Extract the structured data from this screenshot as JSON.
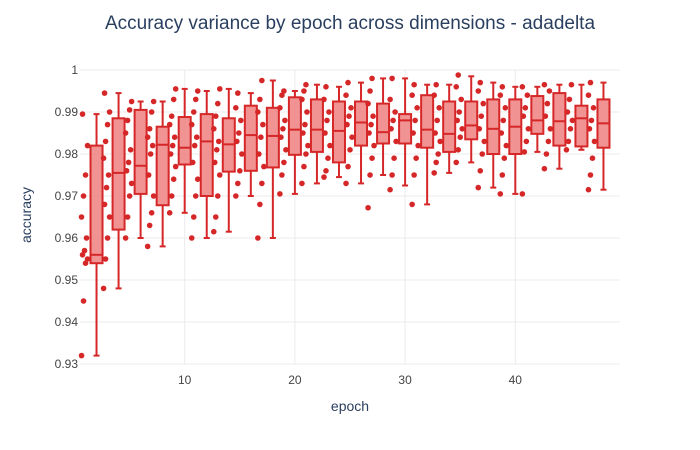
{
  "chart_data": {
    "type": "box",
    "title": "Accuracy variance by epoch across dimensions - adadelta",
    "xlabel": "epoch",
    "ylabel": "accuracy",
    "xlim": [
      0.5,
      49.5
    ],
    "ylim": [
      0.93,
      1.0
    ],
    "x_ticks": [
      10,
      20,
      30,
      40
    ],
    "y_ticks": [
      0.93,
      0.94,
      0.95,
      0.96,
      0.97,
      0.98,
      0.99,
      1
    ],
    "x_tick_labels": [
      "10",
      "20",
      "30",
      "40"
    ],
    "y_tick_labels": [
      "0.93",
      "0.94",
      "0.95",
      "0.96",
      "0.97",
      "0.98",
      "0.99",
      "1"
    ],
    "grid": true,
    "colors": {
      "line": "#d62728",
      "fill": "#f08080",
      "points": "#d62728",
      "grid": "#ebebeb",
      "text": "#2a3f5f"
    },
    "boxes": [
      {
        "epoch": 2,
        "lowerfence": 0.932,
        "q1": 0.954,
        "median": 0.956,
        "q3": 0.982,
        "upperfence": 0.9895,
        "points": [
          0.932,
          0.945,
          0.954,
          0.955,
          0.956,
          0.957,
          0.96,
          0.965,
          0.97,
          0.975,
          0.982,
          0.9895
        ]
      },
      {
        "epoch": 4,
        "lowerfence": 0.948,
        "q1": 0.962,
        "median": 0.9755,
        "q3": 0.9885,
        "upperfence": 0.9945,
        "points": [
          0.948,
          0.955,
          0.96,
          0.965,
          0.968,
          0.972,
          0.975,
          0.979,
          0.983,
          0.987,
          0.99,
          0.9945
        ]
      },
      {
        "epoch": 6,
        "lowerfence": 0.96,
        "q1": 0.9705,
        "median": 0.9772,
        "q3": 0.9905,
        "upperfence": 0.9925,
        "points": [
          0.96,
          0.965,
          0.97,
          0.973,
          0.976,
          0.978,
          0.981,
          0.985,
          0.988,
          0.9905,
          0.9925
        ]
      },
      {
        "epoch": 8,
        "lowerfence": 0.958,
        "q1": 0.9678,
        "median": 0.9822,
        "q3": 0.9865,
        "upperfence": 0.9925,
        "points": [
          0.958,
          0.963,
          0.966,
          0.97,
          0.975,
          0.98,
          0.982,
          0.984,
          0.986,
          0.99,
          0.9925
        ]
      },
      {
        "epoch": 10,
        "lowerfence": 0.966,
        "q1": 0.9775,
        "median": 0.9815,
        "q3": 0.9888,
        "upperfence": 0.9955,
        "points": [
          0.966,
          0.97,
          0.974,
          0.977,
          0.98,
          0.982,
          0.984,
          0.987,
          0.989,
          0.993,
          0.9955
        ]
      },
      {
        "epoch": 12,
        "lowerfence": 0.96,
        "q1": 0.97,
        "median": 0.983,
        "q3": 0.9895,
        "upperfence": 0.995,
        "points": [
          0.96,
          0.965,
          0.97,
          0.974,
          0.978,
          0.982,
          0.984,
          0.987,
          0.99,
          0.993,
          0.995
        ]
      },
      {
        "epoch": 14,
        "lowerfence": 0.9615,
        "q1": 0.9758,
        "median": 0.9823,
        "q3": 0.9885,
        "upperfence": 0.9955,
        "points": [
          0.9615,
          0.965,
          0.97,
          0.975,
          0.978,
          0.981,
          0.983,
          0.986,
          0.989,
          0.992,
          0.9955
        ]
      },
      {
        "epoch": 16,
        "lowerfence": 0.97,
        "q1": 0.976,
        "median": 0.9845,
        "q3": 0.9915,
        "upperfence": 0.9945,
        "points": [
          0.97,
          0.973,
          0.976,
          0.98,
          0.983,
          0.985,
          0.988,
          0.991,
          0.9945
        ]
      },
      {
        "epoch": 18,
        "lowerfence": 0.96,
        "q1": 0.9768,
        "median": 0.9843,
        "q3": 0.991,
        "upperfence": 0.9975,
        "points": [
          0.96,
          0.968,
          0.973,
          0.977,
          0.98,
          0.984,
          0.987,
          0.99,
          0.993,
          0.9975
        ]
      },
      {
        "epoch": 20,
        "lowerfence": 0.9705,
        "q1": 0.9798,
        "median": 0.9858,
        "q3": 0.9935,
        "upperfence": 0.995,
        "points": [
          0.9705,
          0.975,
          0.978,
          0.981,
          0.984,
          0.986,
          0.988,
          0.991,
          0.994,
          0.995
        ]
      },
      {
        "epoch": 22,
        "lowerfence": 0.973,
        "q1": 0.9805,
        "median": 0.9858,
        "q3": 0.993,
        "upperfence": 0.9965,
        "points": [
          0.973,
          0.977,
          0.98,
          0.982,
          0.985,
          0.987,
          0.99,
          0.993,
          0.995,
          0.9965
        ]
      },
      {
        "epoch": 24,
        "lowerfence": 0.9745,
        "q1": 0.978,
        "median": 0.9855,
        "q3": 0.9925,
        "upperfence": 0.996,
        "points": [
          0.9745,
          0.976,
          0.979,
          0.982,
          0.985,
          0.988,
          0.99,
          0.993,
          0.996
        ]
      },
      {
        "epoch": 26,
        "lowerfence": 0.973,
        "q1": 0.982,
        "median": 0.9875,
        "q3": 0.9925,
        "upperfence": 0.997,
        "points": [
          0.973,
          0.977,
          0.981,
          0.984,
          0.987,
          0.989,
          0.991,
          0.994,
          0.997
        ]
      },
      {
        "epoch": 28,
        "lowerfence": 0.975,
        "q1": 0.9825,
        "median": 0.9852,
        "q3": 0.992,
        "upperfence": 0.998,
        "points": [
          0.9672,
          0.975,
          0.979,
          0.982,
          0.985,
          0.987,
          0.989,
          0.992,
          0.995,
          0.998
        ]
      },
      {
        "epoch": 30,
        "lowerfence": 0.9725,
        "q1": 0.9825,
        "median": 0.988,
        "q3": 0.9895,
        "upperfence": 0.998,
        "points": [
          0.9715,
          0.975,
          0.979,
          0.983,
          0.986,
          0.988,
          0.99,
          0.993,
          0.998
        ]
      },
      {
        "epoch": 32,
        "lowerfence": 0.968,
        "q1": 0.9815,
        "median": 0.9858,
        "q3": 0.994,
        "upperfence": 0.9965,
        "points": [
          0.968,
          0.975,
          0.979,
          0.982,
          0.985,
          0.988,
          0.991,
          0.994,
          0.9965
        ]
      },
      {
        "epoch": 34,
        "lowerfence": 0.9755,
        "q1": 0.9805,
        "median": 0.9848,
        "q3": 0.9925,
        "upperfence": 0.9965,
        "points": [
          0.9755,
          0.978,
          0.98,
          0.983,
          0.985,
          0.988,
          0.991,
          0.994,
          0.9965
        ]
      },
      {
        "epoch": 36,
        "lowerfence": 0.978,
        "q1": 0.9835,
        "median": 0.9868,
        "q3": 0.9925,
        "upperfence": 0.9985,
        "points": [
          0.978,
          0.981,
          0.984,
          0.986,
          0.988,
          0.99,
          0.993,
          0.996,
          0.9988
        ]
      },
      {
        "epoch": 38,
        "lowerfence": 0.972,
        "q1": 0.98,
        "median": 0.986,
        "q3": 0.993,
        "upperfence": 0.997,
        "points": [
          0.972,
          0.976,
          0.98,
          0.983,
          0.986,
          0.989,
          0.992,
          0.995,
          0.997
        ]
      },
      {
        "epoch": 40,
        "lowerfence": 0.9705,
        "q1": 0.98,
        "median": 0.9865,
        "q3": 0.993,
        "upperfence": 0.996,
        "points": [
          0.9705,
          0.975,
          0.979,
          0.982,
          0.985,
          0.988,
          0.991,
          0.994,
          0.996
        ]
      },
      {
        "epoch": 42,
        "lowerfence": 0.9805,
        "q1": 0.9848,
        "median": 0.988,
        "q3": 0.9938,
        "upperfence": 0.996,
        "points": [
          0.9705,
          0.9805,
          0.983,
          0.986,
          0.989,
          0.991,
          0.994,
          0.996
        ]
      },
      {
        "epoch": 44,
        "lowerfence": 0.9765,
        "q1": 0.982,
        "median": 0.9878,
        "q3": 0.9945,
        "upperfence": 0.9965,
        "points": [
          0.9765,
          0.98,
          0.983,
          0.986,
          0.989,
          0.992,
          0.995,
          0.9965
        ]
      },
      {
        "epoch": 46,
        "lowerfence": 0.981,
        "q1": 0.9818,
        "median": 0.9885,
        "q3": 0.9915,
        "upperfence": 0.9965,
        "points": [
          0.981,
          0.983,
          0.986,
          0.988,
          0.99,
          0.993,
          0.9965
        ]
      },
      {
        "epoch": 48,
        "lowerfence": 0.9715,
        "q1": 0.9815,
        "median": 0.9873,
        "q3": 0.993,
        "upperfence": 0.997,
        "points": [
          0.9715,
          0.975,
          0.979,
          0.983,
          0.986,
          0.988,
          0.991,
          0.994,
          0.997
        ]
      }
    ]
  }
}
